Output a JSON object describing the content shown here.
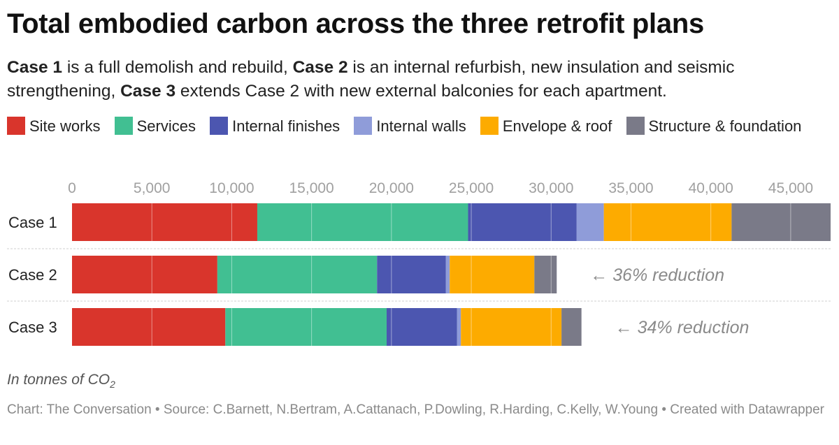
{
  "title": "Total embodied carbon across the three retrofit plans",
  "subtitle": {
    "case1_label": "Case 1",
    "case1_text": " is a full demolish and rebuild, ",
    "case2_label": "Case 2",
    "case2_text": " is an internal refurbish, new insulation and seismic strengthening, ",
    "case3_label": "Case 3",
    "case3_text": " extends Case 2 with new external balconies for each apartment."
  },
  "notes": {
    "prefix": "In tonnes of CO",
    "subscript": "2"
  },
  "footer": "Chart: The Conversation • Source: C.Barnett, N.Bertram, A.Cattanach, P.Dowling, R.Harding, C.Kelly, W.Young • Created with Datawrapper",
  "chart_data": {
    "type": "bar",
    "orientation": "horizontal",
    "stacked": true,
    "categories": [
      "Case 1",
      "Case 2",
      "Case 3"
    ],
    "series": [
      {
        "name": "Site works",
        "color": "#d9352c",
        "values": [
          11600,
          9100,
          9600
        ]
      },
      {
        "name": "Services",
        "color": "#41bf92",
        "values": [
          13200,
          10000,
          10100
        ]
      },
      {
        "name": "Internal finishes",
        "color": "#4c56b0",
        "values": [
          6800,
          4300,
          4400
        ]
      },
      {
        "name": "Internal walls",
        "color": "#8f9cd9",
        "values": [
          1700,
          250,
          250
        ]
      },
      {
        "name": "Envelope & roof",
        "color": "#fdab00",
        "values": [
          8000,
          5300,
          6300
        ]
      },
      {
        "name": "Structure & foundation",
        "color": "#7a7a88",
        "values": [
          6200,
          1400,
          1250
        ]
      }
    ],
    "annotations": [
      {
        "category": "Case 2",
        "text": "← 36% reduction"
      },
      {
        "category": "Case 3",
        "text": "← 34% reduction"
      }
    ],
    "xlim": [
      0,
      47500
    ],
    "xticks": [
      0,
      5000,
      10000,
      15000,
      20000,
      25000,
      30000,
      35000,
      40000,
      45000
    ],
    "xtick_labels": [
      "0",
      "5,000",
      "10,000",
      "15,000",
      "20,000",
      "25,000",
      "30,000",
      "35,000",
      "40,000",
      "45,000"
    ],
    "grid": true,
    "legend_position": "top"
  }
}
